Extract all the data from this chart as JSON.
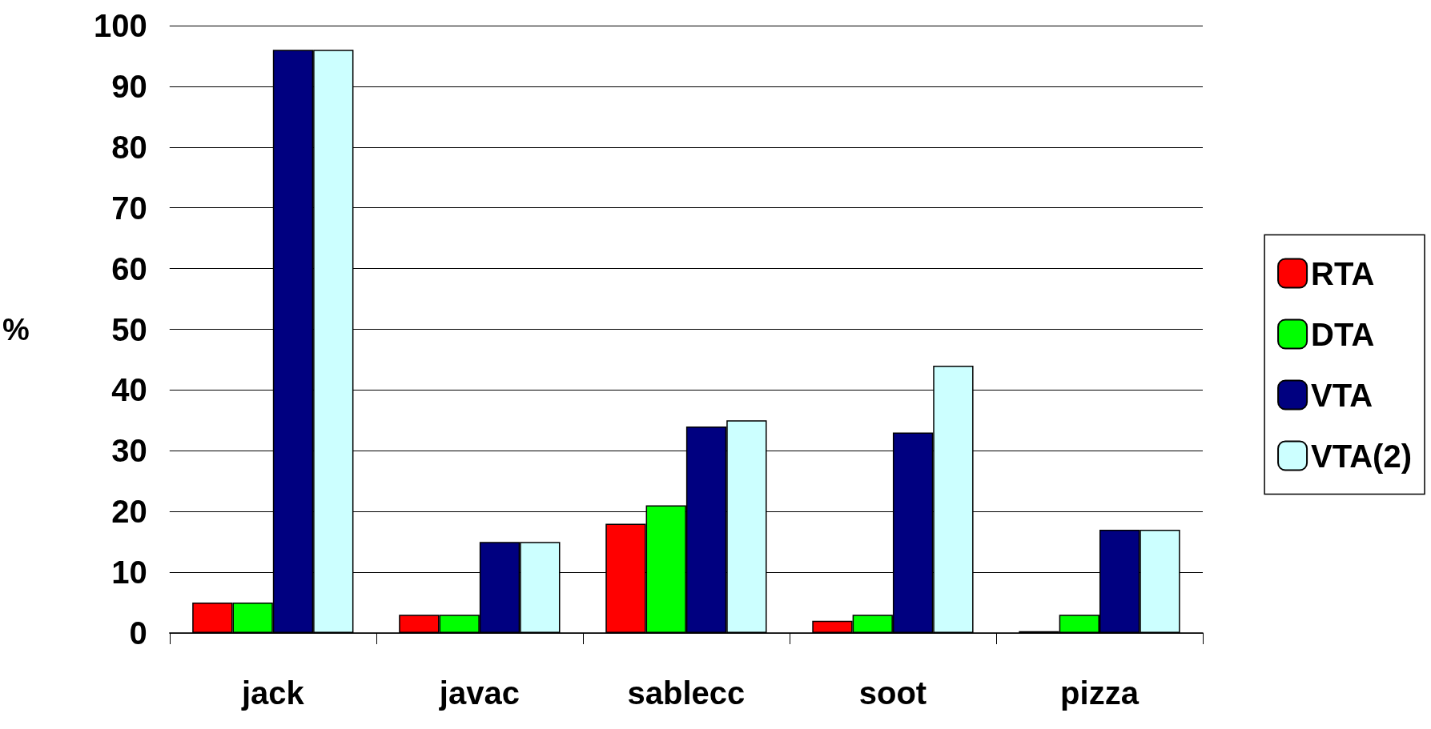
{
  "chart_data": {
    "type": "bar",
    "ylabel": "%",
    "categories": [
      "jack",
      "javac",
      "sablecc",
      "soot",
      "pizza"
    ],
    "series": [
      {
        "name": "RTA",
        "color": "#ff0000",
        "values": [
          5,
          3,
          18,
          2,
          0.3
        ]
      },
      {
        "name": "DTA",
        "color": "#00ff00",
        "values": [
          5,
          3,
          21,
          3,
          3
        ]
      },
      {
        "name": "VTA",
        "color": "#000080",
        "values": [
          96,
          15,
          34,
          33,
          17
        ]
      },
      {
        "name": "VTA(2)",
        "color": "#ccffff",
        "values": [
          96,
          15,
          35,
          44,
          17
        ]
      }
    ],
    "ylim": [
      0,
      100
    ],
    "yticks": [
      0,
      10,
      20,
      30,
      40,
      50,
      60,
      70,
      80,
      90,
      100
    ],
    "grid": "y",
    "legend": "right"
  }
}
